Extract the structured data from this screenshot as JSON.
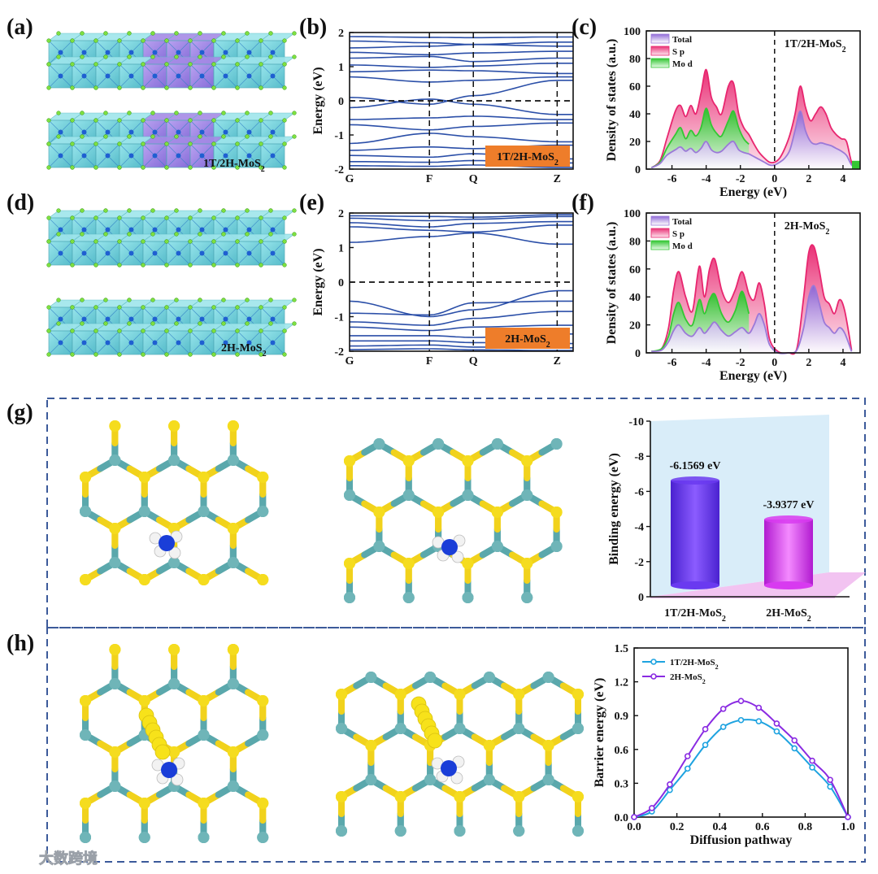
{
  "colors": {
    "band_line": "#2b4fa8",
    "orange_box": "#ee7d2a",
    "total": "#9b79d8",
    "s_p": "#e8266f",
    "mo_d": "#33c733",
    "bar1": "#6a3af0",
    "bar2": "#d83af0",
    "curve1": "#1ea3e0",
    "curve2": "#8a2be2",
    "dash_frame": "#3c5a9a"
  },
  "panel_labels": {
    "a": "(a)",
    "b": "(b)",
    "c": "(c)",
    "d": "(d)",
    "e": "(e)",
    "f": "(f)",
    "g": "(g)",
    "h": "(h)"
  },
  "structures": {
    "label_1T": "1T/2H-MoS",
    "label_2H": "2H-MoS",
    "subscript": "2"
  },
  "watermark": "大数跨境",
  "chart_data": [
    {
      "id": "b",
      "type": "line",
      "title": "",
      "ylabel": "Energy (eV)",
      "xlabel": "",
      "x_ticks": [
        "G",
        "F",
        "Q",
        "Z"
      ],
      "x_tick_positions": [
        0,
        1,
        1.55,
        2.6
      ],
      "ylim": [
        -2,
        2
      ],
      "y_ticks": [
        -2,
        -1,
        0,
        1,
        2
      ],
      "fermi_level": 0,
      "box_label": "1T/2H-MoS",
      "box_sub": "2",
      "bands": [
        [
          1.88,
          1.86,
          1.85,
          1.87
        ],
        [
          1.75,
          1.7,
          1.65,
          1.72
        ],
        [
          1.55,
          1.6,
          1.65,
          1.6
        ],
        [
          1.42,
          1.35,
          1.4,
          1.45
        ],
        [
          1.25,
          1.3,
          1.15,
          1.25
        ],
        [
          1.05,
          0.98,
          1.02,
          1.1
        ],
        [
          0.85,
          0.9,
          0.88,
          0.8
        ],
        [
          0.7,
          0.55,
          0.6,
          0.7
        ],
        [
          0.1,
          -0.1,
          0.15,
          0.6
        ],
        [
          -0.2,
          0.05,
          -0.1,
          -0.4
        ],
        [
          -0.55,
          -0.5,
          -0.45,
          -0.55
        ],
        [
          -0.7,
          -0.85,
          -0.75,
          -0.65
        ],
        [
          -1.25,
          -0.95,
          -1.05,
          -1.2
        ],
        [
          -1.45,
          -1.35,
          -1.4,
          -1.3
        ],
        [
          -1.6,
          -1.65,
          -1.55,
          -1.7
        ],
        [
          -1.78,
          -1.8,
          -1.75,
          -1.82
        ],
        [
          -1.9,
          -1.92,
          -1.88,
          -1.95
        ]
      ]
    },
    {
      "id": "c",
      "type": "area",
      "title": "1T/2H-MoS",
      "title_sub": "2",
      "xlabel": "Energy (eV)",
      "ylabel": "Density of states (a.u.)",
      "xlim": [
        -7.5,
        5
      ],
      "ylim": [
        0,
        100
      ],
      "x_ticks": [
        -6,
        -4,
        -2,
        0,
        2,
        4
      ],
      "y_ticks": [
        0,
        20,
        40,
        60,
        80,
        100
      ],
      "fermi_level": 0,
      "legend": [
        "Total",
        "S p",
        "Mo d"
      ],
      "series": [
        {
          "name": "S p",
          "x": [
            -7.2,
            -6.7,
            -6.3,
            -5.8,
            -5.5,
            -5.2,
            -4.9,
            -4.6,
            -4.3,
            -4.0,
            -3.7,
            -3.4,
            -3.1,
            -2.7,
            -2.4,
            -2.1,
            -1.8,
            -1.5,
            -1.2,
            -0.9,
            -0.6,
            -0.3,
            0.0,
            0.3,
            0.6,
            0.9,
            1.2,
            1.5,
            1.8,
            2.1,
            2.4,
            2.7,
            3.0,
            3.3,
            3.6,
            3.9,
            4.2,
            4.5,
            4.8
          ],
          "values": [
            1,
            6,
            22,
            42,
            46,
            38,
            46,
            40,
            55,
            72,
            52,
            45,
            40,
            60,
            62,
            40,
            30,
            25,
            18,
            12,
            8,
            5,
            5,
            8,
            15,
            25,
            40,
            60,
            45,
            35,
            40,
            45,
            40,
            30,
            25,
            22,
            20,
            5,
            2
          ]
        },
        {
          "name": "Mo d",
          "x": [
            -7.2,
            -6.7,
            -6.3,
            -5.8,
            -5.5,
            -5.2,
            -4.9,
            -4.6,
            -4.3,
            -4.0,
            -3.7,
            -3.4,
            -3.1,
            -2.7,
            -2.4,
            -2.1,
            -1.8,
            -1.5
          ],
          "values": [
            1,
            5,
            15,
            25,
            30,
            22,
            28,
            24,
            30,
            44,
            32,
            26,
            24,
            35,
            42,
            30,
            22,
            18
          ]
        },
        {
          "name": "Total",
          "x": [
            -7.2,
            -6.7,
            -6.3,
            -5.8,
            -5.5,
            -5.2,
            -4.9,
            -4.6,
            -4.3,
            -4.0,
            -3.7,
            -3.4,
            -3.1,
            -2.7,
            -2.4,
            -2.1,
            -1.8,
            -1.5,
            -1.2,
            -0.9,
            -0.6,
            -0.3,
            0.0,
            0.3,
            0.6,
            0.9,
            1.2,
            1.5,
            1.8,
            2.1,
            2.4,
            2.7,
            3.0,
            3.3,
            3.6,
            3.9,
            4.2,
            4.5,
            4.8
          ],
          "values": [
            1,
            4,
            10,
            14,
            16,
            13,
            15,
            12,
            15,
            20,
            14,
            12,
            13,
            18,
            20,
            14,
            12,
            11,
            9,
            7,
            5,
            3,
            3,
            5,
            8,
            14,
            28,
            42,
            28,
            20,
            18,
            19,
            18,
            17,
            15,
            13,
            10,
            3,
            1
          ]
        }
      ]
    },
    {
      "id": "e",
      "type": "line",
      "title": "",
      "ylabel": "Energy (eV)",
      "xlabel": "",
      "x_ticks": [
        "G",
        "F",
        "Q",
        "Z"
      ],
      "x_tick_positions": [
        0,
        1,
        1.55,
        2.6
      ],
      "ylim": [
        -2,
        2
      ],
      "y_ticks": [
        -2,
        -1,
        0,
        1,
        2
      ],
      "fermi_level": 0,
      "box_label": "2H-MoS",
      "box_sub": "2",
      "bands": [
        [
          1.92,
          1.9,
          1.88,
          1.95
        ],
        [
          1.85,
          1.78,
          1.82,
          1.9
        ],
        [
          1.72,
          1.6,
          1.7,
          1.75
        ],
        [
          1.6,
          1.5,
          1.45,
          1.65
        ],
        [
          1.15,
          1.32,
          1.42,
          1.1
        ],
        [
          -0.55,
          -1.0,
          -0.8,
          -0.25
        ],
        [
          -0.9,
          -0.95,
          -0.6,
          -0.55
        ],
        [
          -1.15,
          -1.25,
          -1.05,
          -0.85
        ],
        [
          -1.3,
          -1.4,
          -1.3,
          -1.25
        ],
        [
          -1.55,
          -1.55,
          -1.6,
          -1.5
        ],
        [
          -1.7,
          -1.7,
          -1.75,
          -1.78
        ],
        [
          -1.85,
          -1.82,
          -1.88,
          -1.9
        ],
        [
          -1.95,
          -1.93,
          -1.96,
          -1.98
        ]
      ]
    },
    {
      "id": "f",
      "type": "area",
      "title": "2H-MoS",
      "title_sub": "2",
      "xlabel": "Energy (eV)",
      "ylabel": "Density of states (a.u.)",
      "xlim": [
        -7.5,
        5
      ],
      "ylim": [
        0,
        100
      ],
      "x_ticks": [
        -6,
        -4,
        -2,
        0,
        2,
        4
      ],
      "y_ticks": [
        0,
        20,
        40,
        60,
        80,
        100
      ],
      "fermi_level": 0,
      "legend": [
        "Total",
        "S p",
        "Mo d"
      ],
      "series": [
        {
          "name": "S p",
          "x": [
            -7.2,
            -6.6,
            -6.2,
            -5.9,
            -5.6,
            -5.2,
            -4.8,
            -4.4,
            -4.1,
            -3.8,
            -3.5,
            -3.1,
            -2.7,
            -2.3,
            -1.9,
            -1.5,
            -1.2,
            -0.9,
            -0.6,
            -0.3,
            0.2,
            0.8,
            1.3,
            1.7,
            2.0,
            2.3,
            2.6,
            2.9,
            3.2,
            3.5,
            3.8,
            4.1,
            4.5
          ],
          "values": [
            1,
            3,
            18,
            45,
            58,
            40,
            30,
            62,
            40,
            60,
            67,
            45,
            36,
            45,
            58,
            42,
            38,
            50,
            35,
            10,
            1,
            0,
            3,
            40,
            72,
            76,
            60,
            40,
            35,
            28,
            38,
            30,
            2
          ]
        },
        {
          "name": "Mo d",
          "x": [
            -7.2,
            -6.6,
            -6.2,
            -5.9,
            -5.6,
            -5.2,
            -4.8,
            -4.4,
            -4.1,
            -3.8,
            -3.5,
            -3.1,
            -2.7,
            -2.3,
            -1.9,
            -1.5
          ],
          "values": [
            1,
            3,
            12,
            28,
            36,
            24,
            20,
            38,
            28,
            38,
            42,
            28,
            22,
            30,
            44,
            28
          ]
        },
        {
          "name": "Total",
          "x": [
            -7.2,
            -6.6,
            -6.2,
            -5.9,
            -5.6,
            -5.2,
            -4.8,
            -4.4,
            -4.1,
            -3.8,
            -3.5,
            -3.1,
            -2.7,
            -2.3,
            -1.9,
            -1.5,
            -1.2,
            -0.9,
            -0.6,
            -0.3,
            0.2,
            0.8,
            1.3,
            1.7,
            2.0,
            2.3,
            2.6,
            2.9,
            3.2,
            3.5,
            3.8,
            4.1,
            4.5
          ],
          "values": [
            1,
            2,
            8,
            16,
            20,
            14,
            12,
            18,
            14,
            18,
            22,
            16,
            12,
            15,
            18,
            14,
            20,
            28,
            20,
            6,
            0,
            0,
            2,
            18,
            40,
            48,
            36,
            22,
            18,
            14,
            18,
            14,
            1
          ]
        }
      ]
    },
    {
      "id": "g",
      "type": "bar",
      "title": "",
      "ylabel": "Binding energy (eV)",
      "categories": [
        "1T/2H-MoS",
        "2H-MoS"
      ],
      "category_sub": "2",
      "values": [
        -6.1569,
        -3.9377
      ],
      "data_labels": [
        "-6.1569 eV",
        "-3.9377 eV"
      ],
      "ylim": [
        0,
        -10
      ],
      "y_ticks": [
        0,
        -2,
        -4,
        -6,
        -8,
        -10
      ]
    },
    {
      "id": "h",
      "type": "line",
      "title": "",
      "xlabel": "Diffusion pathway",
      "ylabel": "Barrier energy (eV)",
      "xlim": [
        0,
        1
      ],
      "ylim": [
        0,
        1.5
      ],
      "x_ticks": [
        0.0,
        0.2,
        0.4,
        0.6,
        0.8,
        1.0
      ],
      "y_ticks": [
        0.0,
        0.3,
        0.6,
        0.9,
        1.2,
        1.5
      ],
      "series": [
        {
          "name": "1T/2H-MoS",
          "sub": "2",
          "x": [
            0,
            0.083,
            0.167,
            0.25,
            0.333,
            0.417,
            0.5,
            0.583,
            0.667,
            0.75,
            0.833,
            0.917,
            1.0
          ],
          "values": [
            0.0,
            0.05,
            0.24,
            0.43,
            0.64,
            0.8,
            0.86,
            0.85,
            0.76,
            0.61,
            0.44,
            0.27,
            0.0
          ]
        },
        {
          "name": "2H-MoS",
          "sub": "2",
          "x": [
            0,
            0.083,
            0.167,
            0.25,
            0.333,
            0.417,
            0.5,
            0.583,
            0.667,
            0.75,
            0.833,
            0.917,
            1.0
          ],
          "values": [
            0.0,
            0.08,
            0.29,
            0.54,
            0.78,
            0.96,
            1.03,
            0.97,
            0.83,
            0.68,
            0.5,
            0.33,
            0.0
          ]
        }
      ]
    }
  ]
}
